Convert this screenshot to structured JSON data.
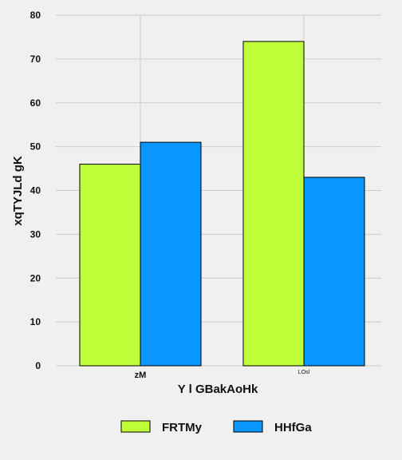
{
  "chart_data": {
    "type": "bar",
    "categories": [
      "zM",
      "LOsl"
    ],
    "series": [
      {
        "name": "FRTMy",
        "values": [
          46,
          74
        ],
        "color": "#bfff3a"
      },
      {
        "name": "HHfGa",
        "values": [
          51,
          43
        ],
        "color": "#0a96ff"
      }
    ],
    "xlabel": "Y l GBakAoHk",
    "ylabel": "xqTYJLd gK",
    "ylim": [
      0,
      80
    ],
    "yticks": [
      0,
      10,
      20,
      30,
      40,
      50,
      60,
      70,
      80
    ],
    "grid": true,
    "legend": "bottom-center"
  },
  "colors": {
    "background": "#f0f0f0",
    "grid": "#cbcbcb",
    "bar_edge": "#000000"
  }
}
